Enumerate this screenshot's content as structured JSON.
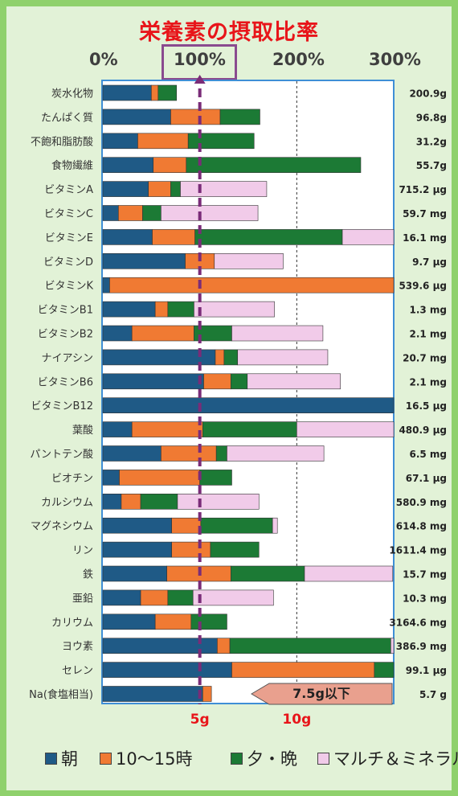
{
  "title": "栄養素の摂取比率",
  "axis_pct_labels": [
    "0%",
    "100%",
    "200%",
    "300%"
  ],
  "axis_g_labels": [
    "5g",
    "10g"
  ],
  "chart_data": {
    "type": "bar",
    "orientation": "horizontal",
    "stacked": true,
    "xlim_pct": [
      0,
      300
    ],
    "categories": [
      "炭水化物",
      "たんぱく質",
      "不飽和脂肪酸",
      "食物繊維",
      "ビタミンA",
      "ビタミンC",
      "ビタミンE",
      "ビタミンD",
      "ビタミンK",
      "ビタミンB1",
      "ビタミンB2",
      "ナイアシン",
      "ビタミンB6",
      "ビタミンB12",
      "葉酸",
      "パントテン酸",
      "ビオチン",
      "カルシウム",
      "マグネシウム",
      "リン",
      "鉄",
      "亜鉛",
      "カリウム",
      "ヨウ素",
      "セレン",
      "Na(食塩相当)"
    ],
    "totals": [
      "200.9g",
      "96.8g",
      "31.2g",
      "55.7g",
      "715.2 μg",
      "59.7 mg",
      "16.1 mg",
      "9.7 μg",
      "539.6 μg",
      "1.3 mg",
      "2.1 mg",
      "20.7 mg",
      "2.1 mg",
      "16.5 μg",
      "480.9 μg",
      "6.5 mg",
      "67.1 μg",
      "580.9 mg",
      "614.8 mg",
      "1611.4 mg",
      "15.7 mg",
      "10.3 mg",
      "3164.6 mg",
      "386.9 mg",
      "99.1 μg",
      "5.7 g"
    ],
    "series": [
      {
        "name": "朝",
        "color": "#1f5a86",
        "values": [
          50,
          70,
          36,
          52,
          47,
          16,
          51,
          85,
          7,
          54,
          30,
          116,
          104,
          300,
          30,
          60,
          17,
          19,
          71,
          71,
          66,
          39,
          54,
          118,
          133,
          103
        ]
      },
      {
        "name": "10～15時",
        "color": "#f07a33",
        "values": [
          7,
          51,
          52,
          34,
          23,
          25,
          44,
          30,
          293,
          13,
          64,
          9,
          28,
          0,
          73,
          57,
          83,
          20,
          30,
          40,
          66,
          28,
          37,
          13,
          147,
          9
        ]
      },
      {
        "name": "夕・晩",
        "color": "#1c7a35",
        "values": [
          19,
          41,
          68,
          180,
          10,
          19,
          152,
          0,
          0,
          27,
          39,
          14,
          17,
          0,
          97,
          11,
          33,
          38,
          74,
          50,
          76,
          26,
          37,
          166,
          20,
          0
        ]
      },
      {
        "name": "マルチ＆ミネラル",
        "color": "#f1cbe9",
        "values": [
          0,
          0,
          0,
          0,
          89,
          100,
          53,
          71,
          0,
          83,
          94,
          93,
          96,
          0,
          100,
          100,
          0,
          84,
          5,
          0,
          91,
          83,
          0,
          3,
          0,
          0
        ]
      }
    ],
    "sodium_annotation": "7.5g以下"
  },
  "legend": [
    "朝",
    "10～15時",
    "夕・晩",
    "マルチ＆ミネラル"
  ]
}
